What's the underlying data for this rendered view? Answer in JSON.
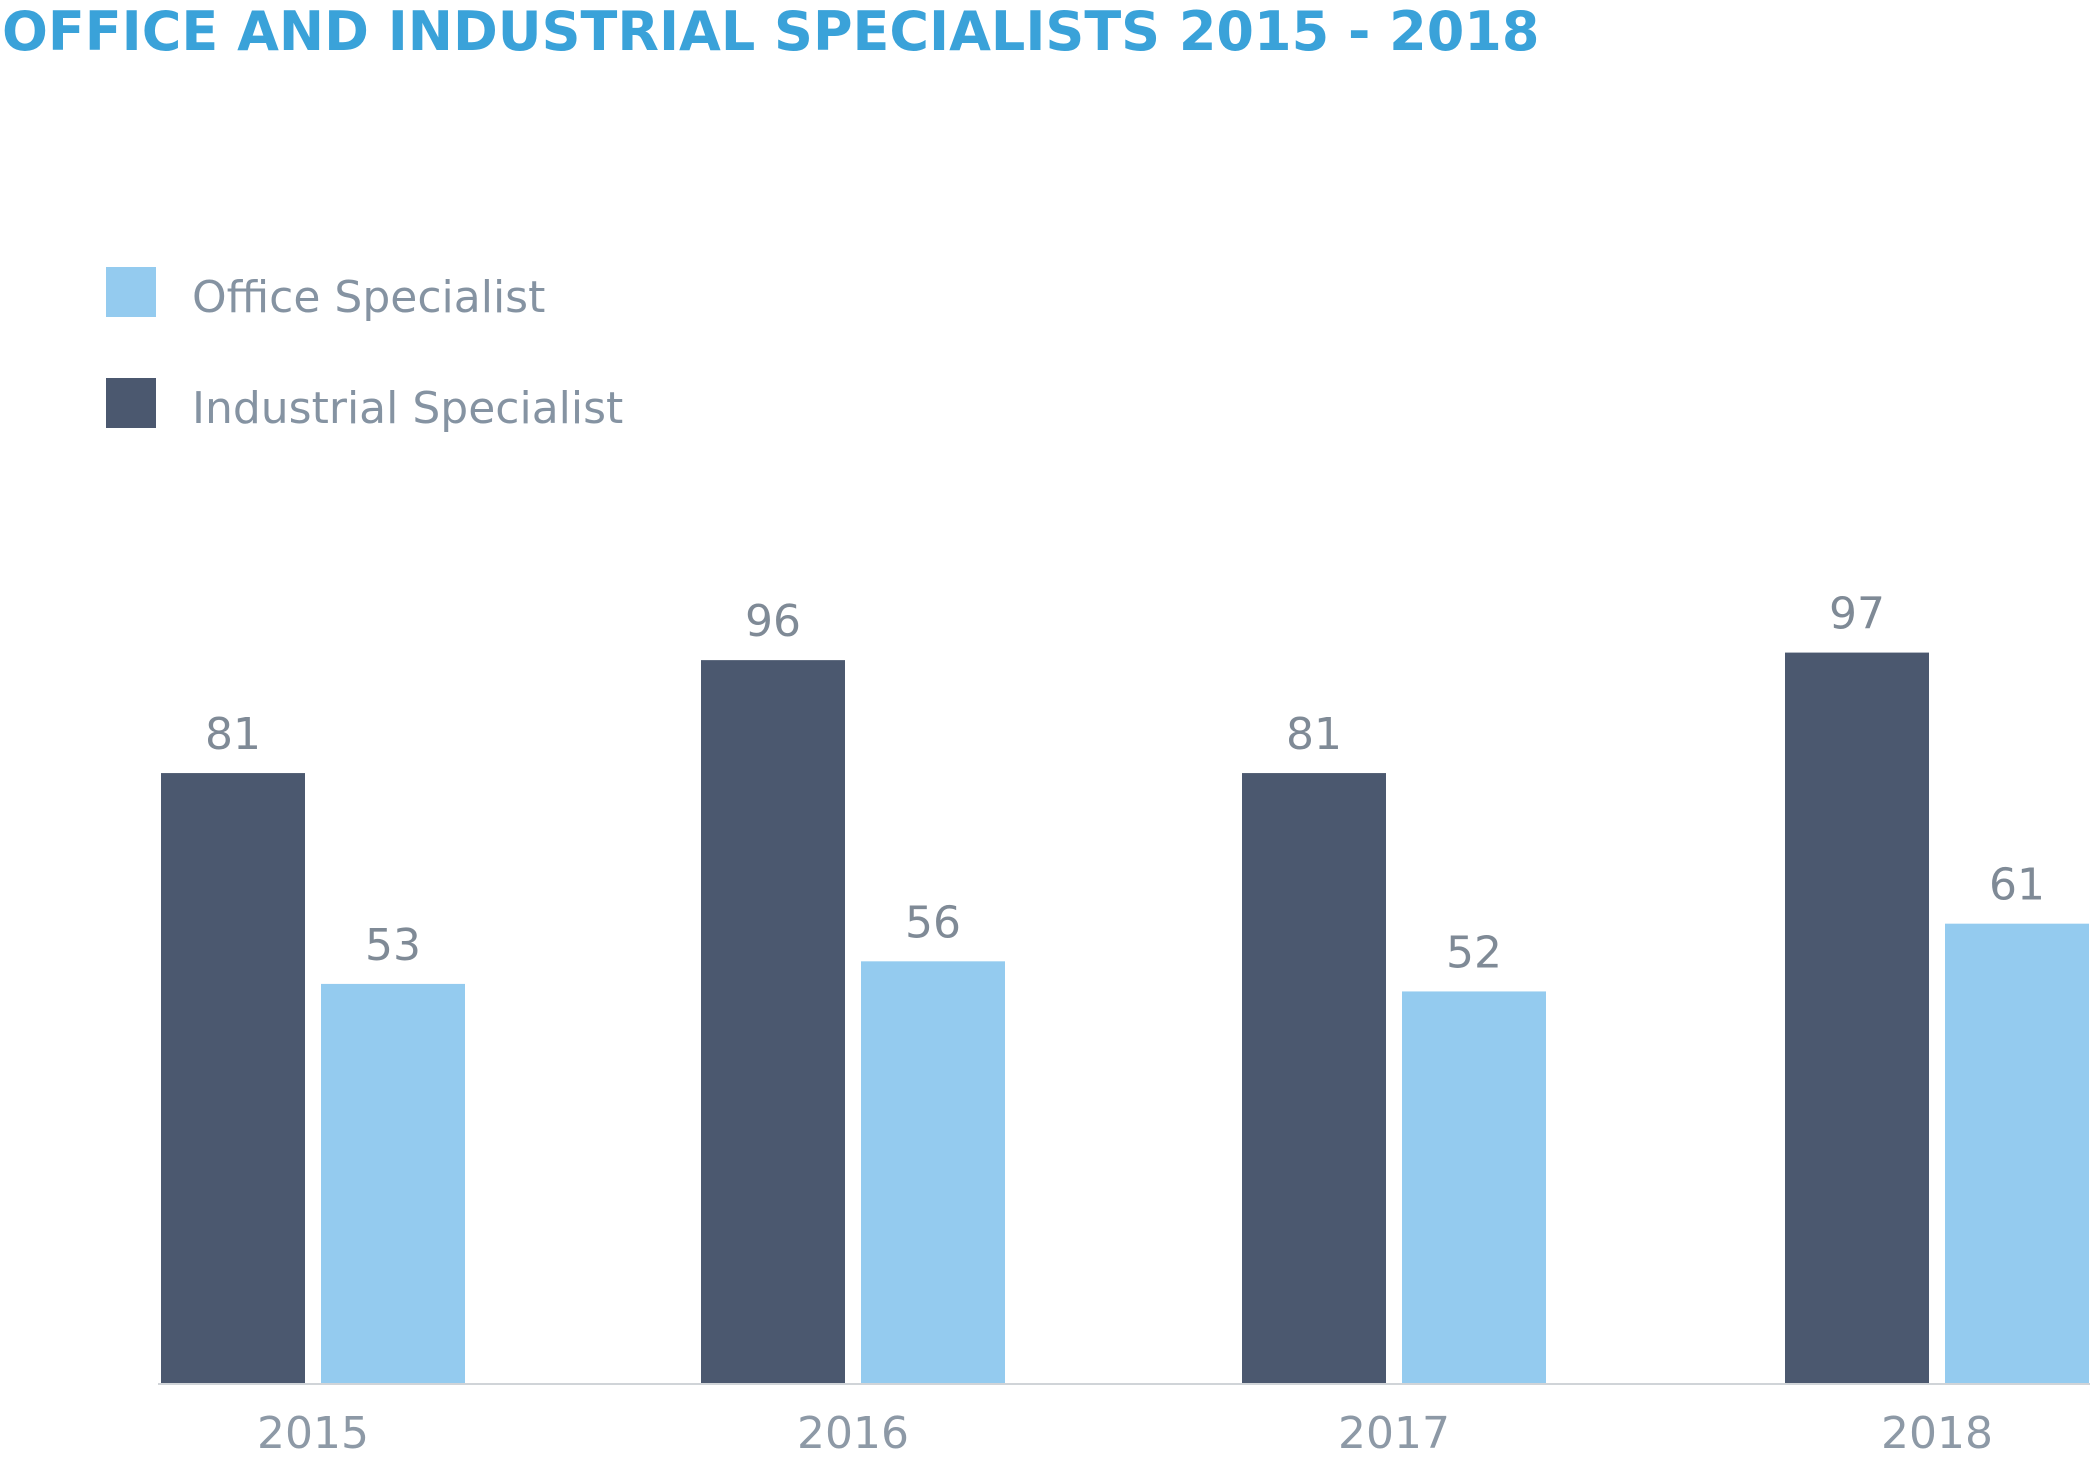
{
  "chart_data": {
    "type": "bar",
    "title": "OFFICE AND INDUSTRIAL SPECIALISTS 2015 - 2018",
    "xlabel": "",
    "ylabel": "",
    "categories": [
      "2015",
      "2016",
      "2017",
      "2018"
    ],
    "series": [
      {
        "name": "Industrial Specialist",
        "values": [
          81,
          96,
          81,
          97
        ],
        "color": "#4b586f"
      },
      {
        "name": "Office Specialist",
        "values": [
          53,
          56,
          52,
          61
        ],
        "color": "#94cbef"
      }
    ],
    "legend": {
      "placement": "top-left",
      "order": [
        "Office Specialist",
        "Industrial Specialist"
      ]
    },
    "ylim": [
      0,
      100
    ],
    "grid": false,
    "data_labels": true
  },
  "colors": {
    "title": "#3aa2d9",
    "legend_text": "#8593a2",
    "value_text": "#7f8a96",
    "tick_text": "#8d99a6",
    "axis_line": "#d0d4d8"
  }
}
